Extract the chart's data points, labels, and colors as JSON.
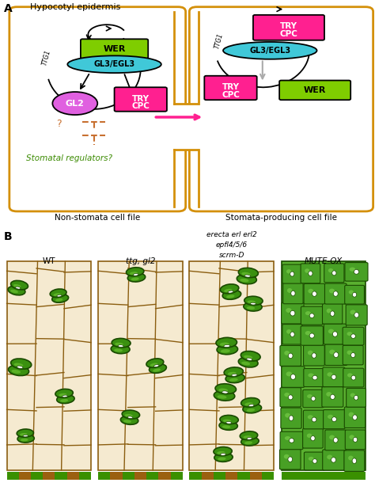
{
  "panel_A_label": "A",
  "panel_B_label": "B",
  "title_A": "Hypocotyl epidermis",
  "label_left": "Non-stomata cell file",
  "label_right": "Stomata-producing cell file",
  "wer_color": "#7fcd00",
  "gl3_color": "#40c8d8",
  "gl2_color": "#e060e0",
  "try_cpc_color": "#ff2090",
  "orange_border": "#d4900a",
  "stomatal_reg_color": "#3a8a00",
  "pink_arrow_color": "#ff2090",
  "inhibit_color": "#c87030",
  "cell_bg": "#f5ead0",
  "cell_line_color": "#8b5e10",
  "stomata_fill": "#3a9010",
  "stomata_dark": "#1a4a00",
  "stomata_light": "#6ac030",
  "mute_bg": "#5ab030",
  "mute_cell": "#48a025",
  "bottom_green": "#3a9000",
  "bottom_brown": "#9b6010"
}
